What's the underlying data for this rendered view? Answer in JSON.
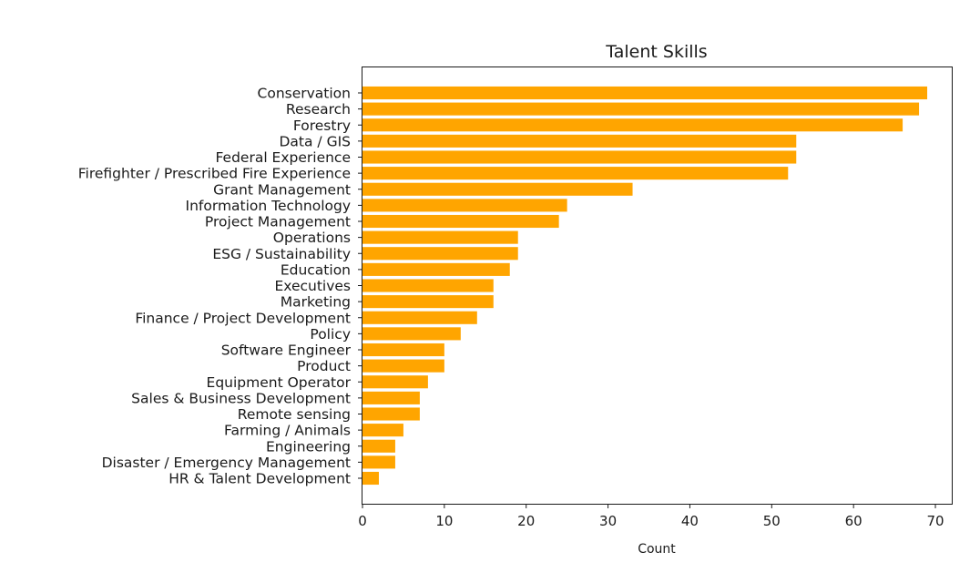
{
  "chart_data": {
    "type": "bar",
    "orientation": "horizontal",
    "title": "Talent Skills",
    "xlabel": "Count",
    "ylabel": "",
    "xlim": [
      0,
      72
    ],
    "xticks": [
      0,
      10,
      20,
      30,
      40,
      50,
      60,
      70
    ],
    "grid": false,
    "bar_color": "#ffa500",
    "categories": [
      "Conservation",
      "Research",
      "Forestry",
      "Data / GIS",
      "Federal Experience",
      "Firefighter / Prescribed Fire Experience",
      "Grant Management",
      "Information Technology",
      "Project Management",
      "Operations",
      "ESG / Sustainability",
      "Education",
      "Executives",
      "Marketing",
      "Finance / Project Development",
      "Policy",
      "Software Engineer",
      "Product",
      "Equipment Operator",
      "Sales & Business Development",
      "Remote sensing",
      "Farming / Animals",
      "Engineering",
      "Disaster / Emergency Management",
      "HR & Talent Development"
    ],
    "values": [
      69,
      68,
      66,
      53,
      53,
      52,
      33,
      25,
      24,
      19,
      19,
      18,
      16,
      16,
      14,
      12,
      10,
      10,
      8,
      7,
      7,
      5,
      4,
      4,
      2
    ]
  }
}
